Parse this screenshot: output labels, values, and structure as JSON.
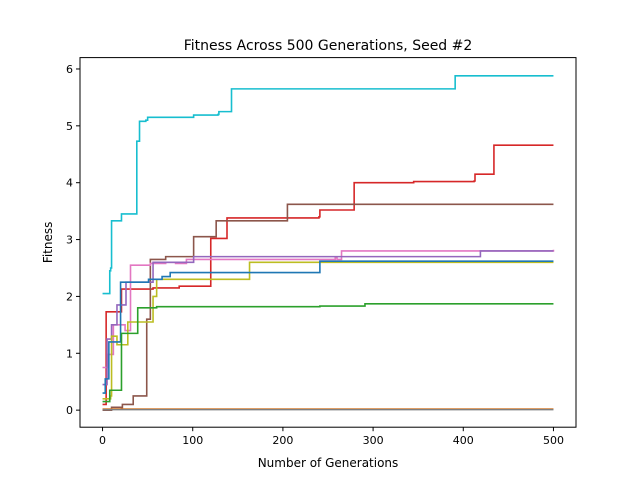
{
  "chart_data": {
    "type": "line",
    "title": "Fitness Across 500 Generations, Seed #2",
    "xlabel": "Number of Generations",
    "ylabel": "Fitness",
    "xlim": [
      -25,
      525
    ],
    "ylim": [
      -0.3,
      6.2
    ],
    "xticks": [
      0,
      100,
      200,
      300,
      400,
      500
    ],
    "yticks": [
      0,
      1,
      2,
      3,
      4,
      5,
      6
    ],
    "grid": false,
    "series": [
      {
        "color": "#17becf",
        "steps": [
          [
            0,
            2.05
          ],
          [
            8,
            2.05
          ],
          [
            8,
            2.45
          ],
          [
            9,
            2.5
          ],
          [
            10,
            3.33
          ],
          [
            20,
            3.33
          ],
          [
            21,
            3.45
          ],
          [
            37,
            3.45
          ],
          [
            38,
            4.73
          ],
          [
            40,
            4.73
          ],
          [
            41,
            5.08
          ],
          [
            48,
            5.1
          ],
          [
            50,
            5.15
          ],
          [
            100,
            5.15
          ],
          [
            101,
            5.19
          ],
          [
            128,
            5.2
          ],
          [
            129,
            5.25
          ],
          [
            142,
            5.25
          ],
          [
            143,
            5.65
          ],
          [
            390,
            5.65
          ],
          [
            391,
            5.88
          ],
          [
            500,
            5.88
          ]
        ]
      },
      {
        "color": "#d62728",
        "steps": [
          [
            0,
            0.1
          ],
          [
            3,
            0.1
          ],
          [
            4,
            1.73
          ],
          [
            20,
            1.73
          ],
          [
            21,
            2.13
          ],
          [
            55,
            2.13
          ],
          [
            56,
            2.15
          ],
          [
            85,
            2.18
          ],
          [
            119,
            2.18
          ],
          [
            120,
            3.02
          ],
          [
            137,
            3.02
          ],
          [
            138,
            3.38
          ],
          [
            240,
            3.4
          ],
          [
            241,
            3.52
          ],
          [
            278,
            3.52
          ],
          [
            279,
            4.0
          ],
          [
            345,
            4.02
          ],
          [
            412,
            4.03
          ],
          [
            413,
            4.15
          ],
          [
            433,
            4.15
          ],
          [
            434,
            4.66
          ],
          [
            500,
            4.66
          ]
        ]
      },
      {
        "color": "#8c564b",
        "steps": [
          [
            0,
            0.0
          ],
          [
            9,
            0.0
          ],
          [
            10,
            0.05
          ],
          [
            20,
            0.05
          ],
          [
            21,
            0.02
          ],
          [
            22,
            0.1
          ],
          [
            33,
            0.1
          ],
          [
            34,
            0.25
          ],
          [
            48,
            0.25
          ],
          [
            49,
            1.6
          ],
          [
            53,
            2.65
          ],
          [
            70,
            2.7
          ],
          [
            100,
            2.7
          ],
          [
            101,
            3.05
          ],
          [
            125,
            3.05
          ],
          [
            126,
            3.33
          ],
          [
            204,
            3.33
          ],
          [
            205,
            3.62
          ],
          [
            500,
            3.62
          ]
        ]
      },
      {
        "color": "#e377c2",
        "steps": [
          [
            0,
            0.75
          ],
          [
            5,
            0.75
          ],
          [
            6,
            0.98
          ],
          [
            11,
            0.98
          ],
          [
            12,
            1.5
          ],
          [
            24,
            1.5
          ],
          [
            25,
            1.4
          ],
          [
            30,
            1.4
          ],
          [
            31,
            2.55
          ],
          [
            52,
            2.55
          ],
          [
            53,
            2.58
          ],
          [
            70,
            2.6
          ],
          [
            80,
            2.6
          ],
          [
            81,
            2.58
          ],
          [
            92,
            2.58
          ],
          [
            93,
            2.65
          ],
          [
            258,
            2.68
          ],
          [
            260,
            2.65
          ],
          [
            265,
            2.8
          ],
          [
            500,
            2.82
          ]
        ]
      },
      {
        "color": "#9467bd",
        "steps": [
          [
            0,
            0.45
          ],
          [
            4,
            0.45
          ],
          [
            5,
            1.25
          ],
          [
            10,
            1.5
          ],
          [
            15,
            1.5
          ],
          [
            16,
            1.85
          ],
          [
            25,
            1.85
          ],
          [
            26,
            2.25
          ],
          [
            55,
            2.25
          ],
          [
            56,
            2.6
          ],
          [
            100,
            2.6
          ],
          [
            101,
            2.7
          ],
          [
            418,
            2.7
          ],
          [
            419,
            2.8
          ],
          [
            500,
            2.8
          ]
        ]
      },
      {
        "color": "#bcbd22",
        "steps": [
          [
            0,
            0.2
          ],
          [
            8,
            0.2
          ],
          [
            9,
            0.25
          ],
          [
            10,
            1.3
          ],
          [
            15,
            1.3
          ],
          [
            16,
            1.15
          ],
          [
            27,
            1.15
          ],
          [
            28,
            1.55
          ],
          [
            55,
            1.55
          ],
          [
            56,
            2.0
          ],
          [
            60,
            2.3
          ],
          [
            162,
            2.3
          ],
          [
            163,
            2.6
          ],
          [
            500,
            2.6
          ]
        ]
      },
      {
        "color": "#1f77b4",
        "steps": [
          [
            0,
            0.3
          ],
          [
            2,
            0.3
          ],
          [
            3,
            0.55
          ],
          [
            6,
            0.55
          ],
          [
            7,
            1.2
          ],
          [
            19,
            1.2
          ],
          [
            20,
            2.25
          ],
          [
            50,
            2.25
          ],
          [
            51,
            2.3
          ],
          [
            65,
            2.3
          ],
          [
            66,
            2.35
          ],
          [
            75,
            2.42
          ],
          [
            240,
            2.42
          ],
          [
            241,
            2.62
          ],
          [
            500,
            2.62
          ]
        ]
      },
      {
        "color": "#2ca02c",
        "steps": [
          [
            0,
            0.15
          ],
          [
            7,
            0.15
          ],
          [
            8,
            0.35
          ],
          [
            20,
            0.35
          ],
          [
            21,
            1.35
          ],
          [
            38,
            1.35
          ],
          [
            39,
            1.8
          ],
          [
            60,
            1.82
          ],
          [
            240,
            1.82
          ],
          [
            241,
            1.83
          ],
          [
            290,
            1.83
          ],
          [
            291,
            1.87
          ],
          [
            500,
            1.87
          ]
        ]
      },
      {
        "color": "#ff7f0e",
        "steps": [
          [
            0,
            0.02
          ],
          [
            500,
            0.02
          ]
        ]
      },
      {
        "color": "#7f7f7f",
        "steps": [
          [
            0,
            0.01
          ],
          [
            500,
            0.01
          ]
        ]
      }
    ]
  }
}
